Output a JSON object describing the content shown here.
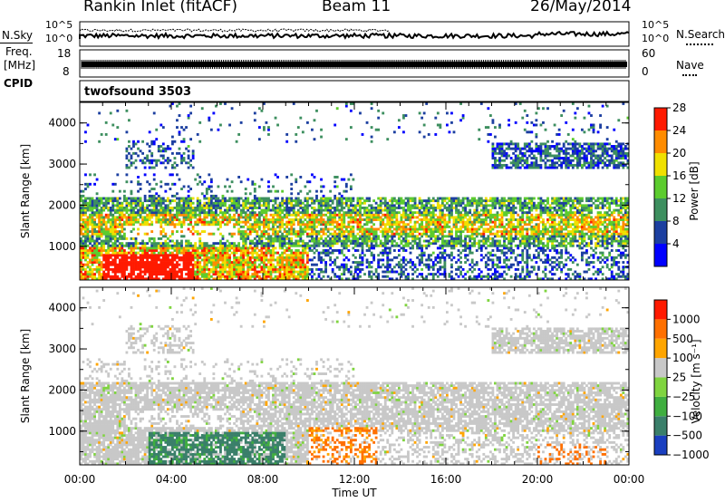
{
  "header": {
    "title": "Rankin Inlet (fitACF)",
    "beam": "Beam 11",
    "date": "26/May/2014"
  },
  "noise_panel": {
    "left_label": "N.Sky",
    "right_label": "N.Search",
    "left_ticks": [
      "10^5",
      "10^0"
    ],
    "right_ticks": [
      "10^5",
      "10^0"
    ]
  },
  "freq_panel": {
    "left_label_line1": "Freq.",
    "left_label_line2": "[MHz]",
    "right_label": "Nave",
    "left_ticks": [
      "18",
      "8"
    ],
    "right_ticks": [
      "60",
      "0"
    ]
  },
  "cpid": {
    "label": "CPID",
    "value": "twofsound 3503"
  },
  "chart_data": [
    {
      "type": "heatmap",
      "name": "power",
      "ylabel": "Slant Range [km]",
      "y_ticks": [
        1000,
        2000,
        3000,
        4000
      ],
      "ylim": [
        180,
        4500
      ],
      "colorbar_label": "Power [dB]",
      "colorbar_ticks": [
        "4",
        "8",
        "12",
        "16",
        "20",
        "24",
        "28"
      ],
      "colors": [
        "#0000ff",
        "#1c3fa0",
        "#3d8f5f",
        "#5ccc2e",
        "#f0e000",
        "#ff8c00",
        "#ff1a00"
      ],
      "colorbar_range": [
        0,
        32
      ]
    },
    {
      "type": "heatmap",
      "name": "velocity",
      "ylabel": "Slant Range [km]",
      "y_ticks": [
        1000,
        2000,
        3000,
        4000
      ],
      "ylim": [
        180,
        4500
      ],
      "colorbar_label": "Velocity [m s⁻¹]",
      "colorbar_ticks": [
        "1000",
        "500",
        "100",
        "25",
        "−25",
        "−100",
        "−500",
        "−1000"
      ],
      "colors": [
        "#1a3fc0",
        "#3a7f6a",
        "#3fae3f",
        "#7fd43f",
        "#c8c8c8",
        "#ffa500",
        "#ff7000",
        "#ff1a00"
      ]
    }
  ],
  "x_axis": {
    "label": "Time UT",
    "ticks": [
      "00:00",
      "04:00",
      "08:00",
      "12:00",
      "16:00",
      "20:00",
      "00:00"
    ],
    "range_hours": [
      0,
      24
    ]
  }
}
